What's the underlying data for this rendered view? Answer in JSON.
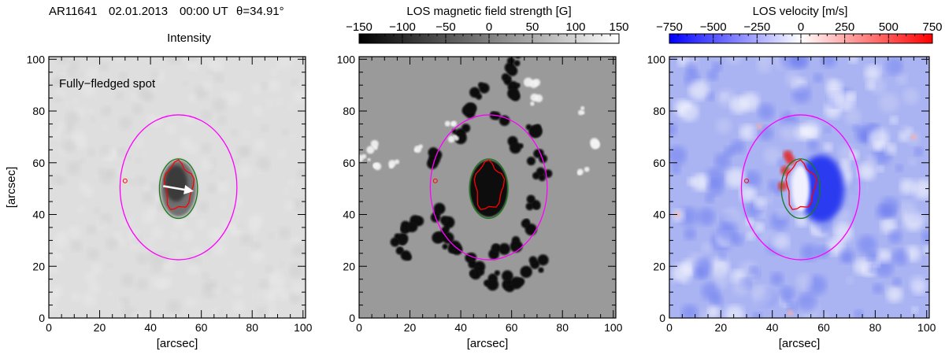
{
  "header": {
    "region": "AR11641",
    "date": "02.01.2013",
    "time": "00:00 UT",
    "angle": "θ=34.91°"
  },
  "panels": [
    {
      "key": "intensity",
      "title": "Intensity",
      "annotation": "Fully−fledged spot",
      "xlabel": "[arcsec]",
      "ylabel": "[arcsec]",
      "colors": {
        "background": "#dedede",
        "penumbra": "#707070",
        "umbra": "#3a3a3a"
      }
    },
    {
      "key": "magnetic",
      "title": "LOS magnetic field strength [G]",
      "colorbar": {
        "min": -150,
        "max": 150,
        "ticks": [
          "−150",
          "−100",
          "−50",
          "0",
          "50",
          "100",
          "150"
        ],
        "low_color": "#000000",
        "high_color": "#ffffff"
      },
      "xlabel": "[arcsec]",
      "colors": {
        "background": "#9a9a9a",
        "negative": "#0a0a0a",
        "positive": "#f4f4f4"
      }
    },
    {
      "key": "velocity",
      "title": "LOS velocity [m/s]",
      "colorbar": {
        "min": -750,
        "max": 750,
        "ticks": [
          "−750",
          "−500",
          "−250",
          "0",
          "250",
          "500",
          "750"
        ],
        "low_color": "#0000ff",
        "high_color": "#ff0000"
      },
      "xlabel": "[arcsec]",
      "colors": {
        "background": "#aab4f2",
        "strong_blue": "#2a3af0",
        "red": "#e02a2a"
      }
    }
  ],
  "axes": {
    "x_range": [
      0,
      101
    ],
    "y_range": [
      0,
      101
    ],
    "x_ticks": [
      "0",
      "20",
      "40",
      "60",
      "80",
      "100"
    ],
    "y_ticks": [
      "0",
      "20",
      "40",
      "60",
      "80",
      "100"
    ]
  },
  "contours": {
    "outer_color": "#ff00ff",
    "penumbra_color": "#1a7a1a",
    "umbra_color": "#ff0000",
    "outer_center": [
      51,
      50.5
    ],
    "outer_radii": [
      23,
      28
    ],
    "inner_center": [
      51,
      50
    ],
    "inner_radii": [
      7.5,
      11.5
    ],
    "umbra_center": [
      51,
      51
    ],
    "umbra_radii": [
      5.5,
      9
    ]
  },
  "arrow": {
    "from": [
      45,
      51
    ],
    "to": [
      57,
      49
    ],
    "color": "#ffffff"
  }
}
